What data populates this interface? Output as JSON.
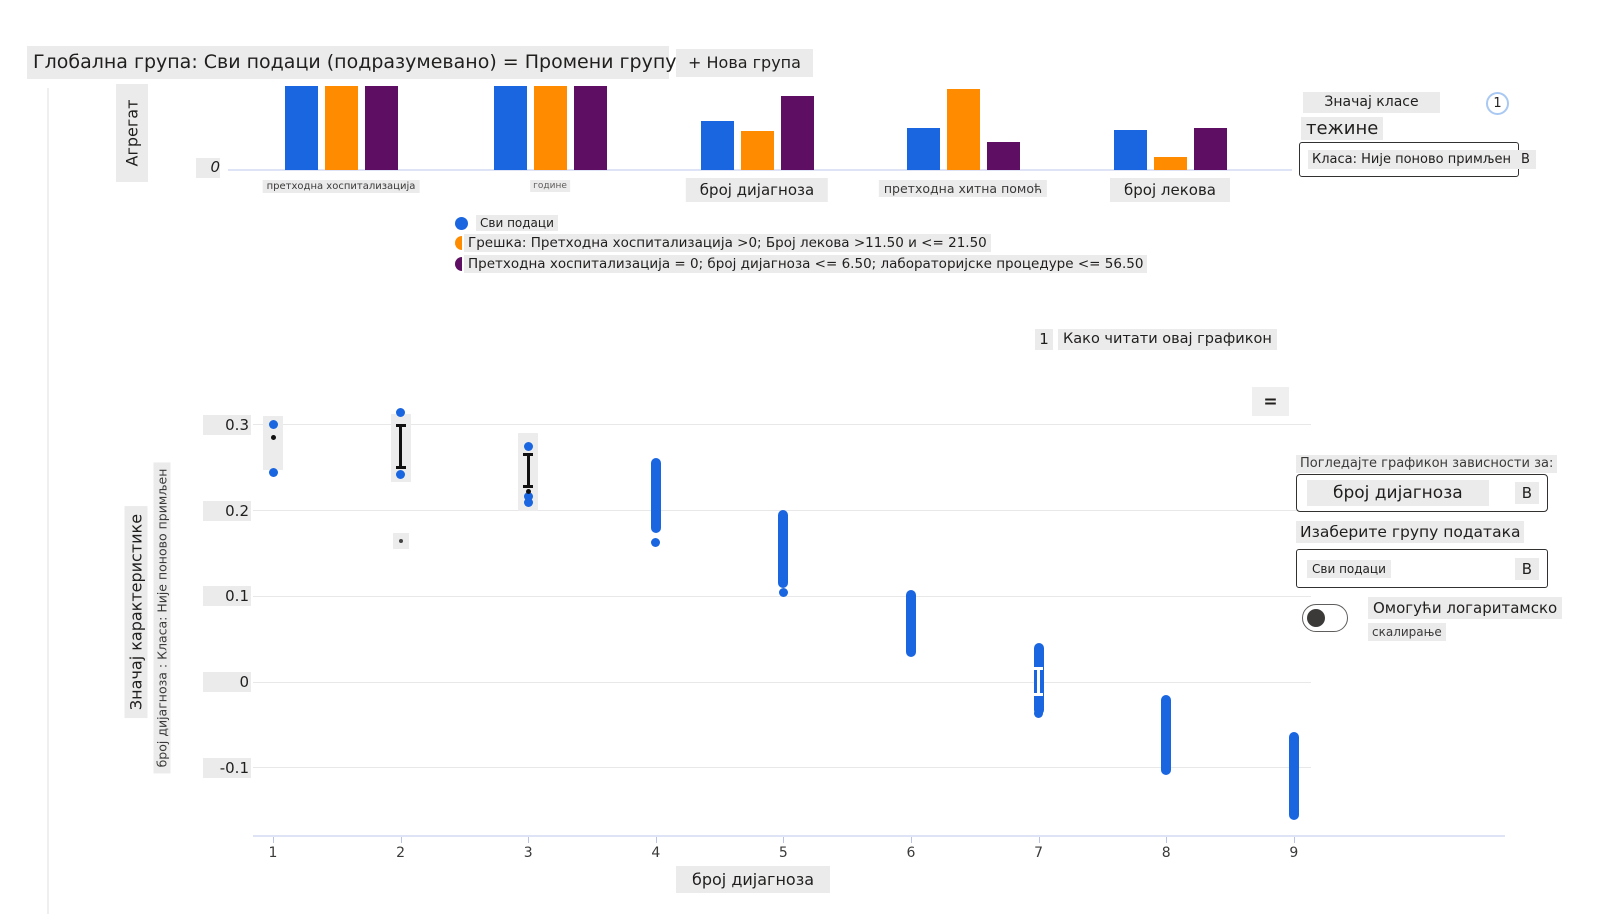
{
  "header": {
    "title": "Глобална група: Сви подаци (подразумевано) = Промени групу",
    "new_group_button": "+ Нова група"
  },
  "aggregate_panel": {
    "axis_label": "Агрегат",
    "zero_tick": "0"
  },
  "class_panel": {
    "title": "Значај класе",
    "info_badge": "1",
    "weights_label": "тежине",
    "class_select_value": "Класа: Није поново примљен",
    "dropdown_glyph": "В"
  },
  "legend": {
    "items": [
      {
        "label": "Сви подаци",
        "color": "#1a66e0",
        "marker": "circle"
      },
      {
        "label": "Грешка: Претходна хоспитализација >0; Број лекова >11.50 и <= 21.50",
        "color": "#ff8c00",
        "marker": "half-circle"
      },
      {
        "label": "Претходна хоспитализација = 0; број дијагноза <= 6.50; лабораторијске процедуре <= 56.50",
        "color": "#5e0f63",
        "marker": "half-circle"
      }
    ]
  },
  "how_to_read": {
    "info_badge": "1",
    "label": "Како читати овај графикон"
  },
  "menu_button_glyph": "=",
  "dependence_panel": {
    "dependence_label": "Погледајте графикон зависности за:",
    "feature_select_value": "број дијагноза",
    "cohort_label": "Изаберите групу података",
    "cohort_select_value": "Сви подаци",
    "dropdown_glyph": "В",
    "log_toggle_label_line1": "Омогући логаритамско",
    "log_toggle_label_line2": "скалирање",
    "log_toggle_on": false
  },
  "chart_data": [
    {
      "id": "aggregate-feature-importance",
      "type": "bar",
      "title": "",
      "ylabel": "Агрегат",
      "yticks": [
        "0"
      ],
      "ylim": [
        0,
        1
      ],
      "grid": false,
      "legend_position": "below",
      "categories": [
        "претходна хоспитализација",
        "године",
        "број дијагноза",
        "претходна хитна помоћ",
        "број лекова"
      ],
      "category_label_sizes": [
        "small",
        "tiny",
        "large",
        "medium",
        "large"
      ],
      "series": [
        {
          "name": "Сви подаци",
          "color": "#1a66e0",
          "values": [
            1.0,
            1.0,
            0.58,
            0.5,
            0.48
          ]
        },
        {
          "name": "Грешка: Претходна хоспитализација >0; Број лекова >11.50 и <= 21.50",
          "color": "#ff8c00",
          "values": [
            1.0,
            1.0,
            0.47,
            0.97,
            0.15
          ]
        },
        {
          "name": "Претходна хоспитализација = 0; број дијагноза <= 6.50; лабораторијске процедуре <= 56.50",
          "color": "#5e0f63",
          "values": [
            1.0,
            1.0,
            0.88,
            0.33,
            0.5
          ]
        }
      ]
    },
    {
      "id": "feature-importance-dependence",
      "type": "scatter",
      "series_name": "Сви подаци",
      "point_color": "#1a66e0",
      "xlabel": "број дијагноза",
      "ylabel_primary": "Значај карактеристике",
      "ylabel_secondary": "број дијагноза : Класа: Није поново примљен",
      "xticks": [
        1,
        2,
        3,
        4,
        5,
        6,
        7,
        8,
        9
      ],
      "yticks": [
        0.3,
        0.2,
        0.1,
        0,
        -0.1
      ],
      "ylim": [
        -0.18,
        0.34
      ],
      "grid": true,
      "clusters": [
        {
          "x": 1,
          "dots": [
            0.3,
            0.245
          ],
          "black_dots": [
            0.285
          ],
          "highlight": [
            0.255,
            0.302
          ]
        },
        {
          "x": 2,
          "dots": [
            0.315,
            0.242
          ],
          "black_bar": [
            0.25,
            0.3
          ],
          "highlight": [
            0.242,
            0.305
          ],
          "faint_dots": [
            0.165
          ]
        },
        {
          "x": 3,
          "dots": [
            0.275,
            0.21,
            0.217
          ],
          "black_bar": [
            0.228,
            0.266
          ],
          "black_dots": [
            0.222
          ],
          "highlight": [
            0.208,
            0.282
          ]
        },
        {
          "x": 4,
          "capsule": [
            0.18,
            0.256
          ],
          "dots": [
            0.163
          ]
        },
        {
          "x": 5,
          "capsule": [
            0.116,
            0.195
          ],
          "dots": [
            0.105
          ]
        },
        {
          "x": 6,
          "capsule": [
            0.035,
            0.102
          ]
        },
        {
          "x": 7,
          "capsule": [
            -0.033,
            0.04
          ],
          "white_bar": [
            -0.015,
            0.016
          ],
          "dots": [
            -0.037
          ]
        },
        {
          "x": 8,
          "capsule": [
            -0.103,
            -0.021
          ]
        },
        {
          "x": 9,
          "capsule": [
            -0.155,
            -0.064
          ]
        }
      ]
    }
  ]
}
